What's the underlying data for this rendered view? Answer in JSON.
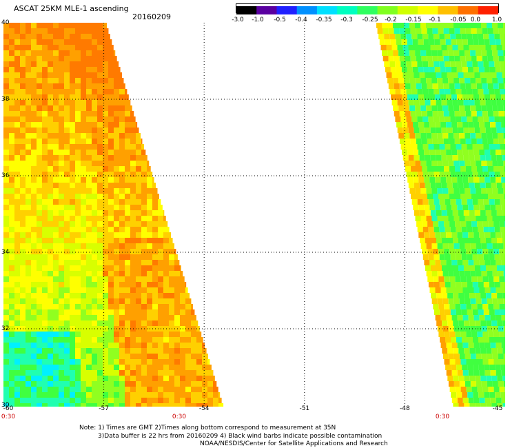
{
  "header": {
    "title": "ASCAT 25KM MLE-1 ascending",
    "date": "20160209"
  },
  "colorbar": {
    "labels": [
      "-3.0",
      "-1.0",
      "-0.5",
      "-0.4",
      "-0.35",
      "-0.3",
      "-0.25",
      "-0.2",
      "-0.15",
      "-0.1",
      "-0.05",
      "0.0",
      "1.0"
    ],
    "colors": [
      "#000000",
      "#5a00a0",
      "#2020ff",
      "#0090ff",
      "#00e0ff",
      "#00ffc0",
      "#30ff60",
      "#80ff20",
      "#d0ff00",
      "#ffff00",
      "#ffc000",
      "#ff7000",
      "#ff2000"
    ]
  },
  "map": {
    "lon_range": [
      -60,
      -45
    ],
    "lat_range": [
      30,
      40
    ],
    "lat_labels": [
      "40",
      "38",
      "36",
      "34",
      "32",
      "30"
    ],
    "lon_labels": [
      "-60",
      "-57",
      "-54",
      "-51",
      "-48",
      "-45"
    ],
    "time_labels": [
      "0:30",
      "0:30",
      "0:30"
    ],
    "grid": true
  },
  "notes": {
    "line1": "Note: 1) Times are GMT 2)Times along bottom correspond to measurement at 35N",
    "line2": "3)Data buffer is 22 hrs from 20160209 4) Black wind barbs indicate possible contamination",
    "line3": "NOAA/NESDIS/Center for Satellite Applications and Research"
  }
}
